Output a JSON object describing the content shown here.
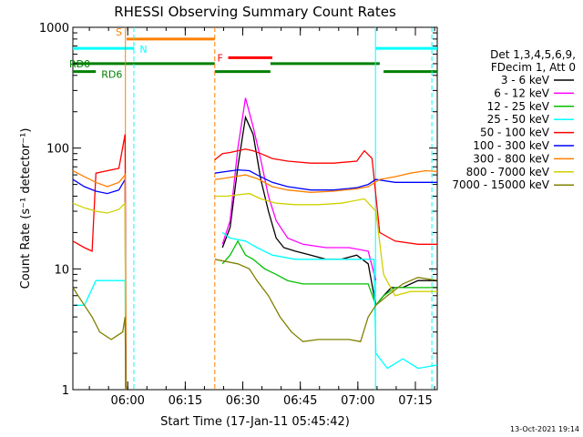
{
  "chart_data": {
    "type": "line",
    "title": "RHESSI Observing Summary Count Rates",
    "xlabel": "Start Time (17-Jan-11 05:45:42)",
    "ylabel": "Count Rate (s⁻¹ detector⁻¹)",
    "yscale": "log",
    "ylim": [
      1,
      1000
    ],
    "xlim_minutes": [
      0,
      95
    ],
    "x_ticks": [
      {
        "m": 14.3,
        "label": "06:00"
      },
      {
        "m": 29.3,
        "label": "06:15"
      },
      {
        "m": 44.3,
        "label": "06:30"
      },
      {
        "m": 59.3,
        "label": "06:45"
      },
      {
        "m": 74.3,
        "label": "07:00"
      },
      {
        "m": 89.3,
        "label": "07:15"
      }
    ],
    "y_ticks": [
      {
        "v": 1,
        "label": "1"
      },
      {
        "v": 10,
        "label": "10"
      },
      {
        "v": 100,
        "label": "100"
      },
      {
        "v": 1000,
        "label": "1000"
      }
    ],
    "legend_header": [
      "Det 1,3,4,5,6,9,",
      "FDecim 1, Att 0"
    ],
    "legend_position": "right",
    "footer_date": "13-Oct-2021 19:14",
    "flags": [
      {
        "label": "S",
        "color": "#ff8000",
        "y": 800,
        "start": 14.0,
        "end": 37.0
      },
      {
        "label": "N",
        "color": "#00ffff",
        "y": 670,
        "start": 0,
        "end": 16.0
      },
      {
        "label": "N",
        "color": "#00ffff",
        "y": 670,
        "start": 79.0,
        "end": 95.0
      },
      {
        "label": "F",
        "color": "#ff0000",
        "y": 560,
        "start": 40.5,
        "end": 52.0
      },
      {
        "label": "RD0",
        "color": "#008000",
        "y": 500,
        "start": 0,
        "end": 37.0
      },
      {
        "label": "RD0",
        "color": "#008000",
        "y": 500,
        "start": 51.5,
        "end": 80.0
      },
      {
        "label": "RD6",
        "color": "#008000",
        "y": 430,
        "start": 0,
        "end": 6.0
      },
      {
        "label": "RD6",
        "color": "#008000",
        "y": 430,
        "start": 37.0,
        "end": 51.5
      },
      {
        "label": "RD6",
        "color": "#008000",
        "y": 430,
        "start": 81.0,
        "end": 95.0
      }
    ],
    "vlines": [
      {
        "m": 13.7,
        "color": "#ff8000",
        "style": "solid"
      },
      {
        "m": 15.9,
        "color": "#00ffff",
        "style": "dashed"
      },
      {
        "m": 37.0,
        "color": "#ff8000",
        "style": "dashed"
      },
      {
        "m": 78.9,
        "color": "#00ffff",
        "style": "solid"
      },
      {
        "m": 93.6,
        "color": "#00ffff",
        "style": "dashed"
      }
    ],
    "series": [
      {
        "name": "3 - 6 keV",
        "color": "#000000",
        "segments": [
          [
            [
              39,
              15
            ],
            [
              41,
              22
            ],
            [
              43,
              70
            ],
            [
              45,
              180
            ],
            [
              47,
              130
            ],
            [
              49,
              55
            ],
            [
              51,
              30
            ],
            [
              53,
              18
            ],
            [
              55,
              15
            ],
            [
              58,
              14
            ],
            [
              62,
              13
            ],
            [
              66,
              12
            ],
            [
              70,
              12
            ],
            [
              74,
              13
            ],
            [
              77,
              11
            ],
            [
              79,
              5
            ],
            [
              81,
              6
            ],
            [
              83,
              7
            ],
            [
              86,
              7
            ],
            [
              90,
              8
            ],
            [
              95,
              8
            ]
          ]
        ]
      },
      {
        "name": "6 - 12 keV",
        "color": "#ff00ff",
        "segments": [
          [
            [
              39,
              16
            ],
            [
              41,
              25
            ],
            [
              43,
              100
            ],
            [
              45,
              260
            ],
            [
              47,
              150
            ],
            [
              49,
              80
            ],
            [
              51,
              40
            ],
            [
              53,
              25
            ],
            [
              56,
              18
            ],
            [
              60,
              16
            ],
            [
              66,
              15
            ],
            [
              72,
              15
            ],
            [
              77,
              14
            ],
            [
              79,
              8
            ]
          ]
        ]
      },
      {
        "name": "12 - 25 keV",
        "color": "#00c000",
        "segments": [
          [
            [
              39,
              11
            ],
            [
              41,
              13
            ],
            [
              43,
              17
            ],
            [
              45,
              13
            ],
            [
              47,
              12
            ],
            [
              50,
              10
            ],
            [
              53,
              9
            ],
            [
              56,
              8
            ],
            [
              60,
              7.5
            ],
            [
              66,
              7.5
            ],
            [
              72,
              7.5
            ],
            [
              77,
              7.5
            ],
            [
              79,
              5
            ],
            [
              81,
              6
            ],
            [
              84,
              7
            ],
            [
              88,
              7
            ],
            [
              95,
              7
            ]
          ]
        ]
      },
      {
        "name": "25 - 50 keV",
        "color": "#00ffff",
        "segments": [
          [
            [
              0,
              5
            ],
            [
              3,
              5
            ],
            [
              6,
              8
            ],
            [
              10,
              8
            ],
            [
              13,
              8
            ],
            [
              13.6,
              8
            ],
            [
              13.8,
              1
            ]
          ],
          [
            [
              39,
              20
            ],
            [
              41,
              18
            ],
            [
              45,
              17
            ],
            [
              48,
              15
            ],
            [
              52,
              13
            ],
            [
              58,
              12
            ],
            [
              64,
              12
            ],
            [
              70,
              12
            ],
            [
              76,
              12
            ],
            [
              78.5,
              12
            ],
            [
              79,
              2
            ],
            [
              82,
              1.5
            ],
            [
              86,
              1.8
            ],
            [
              90,
              1.5
            ],
            [
              95,
              1.6
            ]
          ]
        ]
      },
      {
        "name": "50 - 100 keV",
        "color": "#ff0000",
        "segments": [
          [
            [
              0,
              17
            ],
            [
              3,
              15
            ],
            [
              5,
              14
            ],
            [
              6,
              62
            ],
            [
              9,
              65
            ],
            [
              12,
              68
            ],
            [
              13.6,
              130
            ],
            [
              13.9,
              1
            ]
          ],
          [
            [
              37,
              80
            ],
            [
              39,
              90
            ],
            [
              41,
              92
            ],
            [
              43,
              95
            ],
            [
              45,
              98
            ],
            [
              47,
              95
            ],
            [
              49,
              90
            ],
            [
              52,
              82
            ],
            [
              56,
              78
            ],
            [
              62,
              75
            ],
            [
              68,
              75
            ],
            [
              74,
              78
            ],
            [
              76,
              95
            ],
            [
              78,
              82
            ],
            [
              80,
              20
            ],
            [
              84,
              17
            ],
            [
              90,
              16
            ],
            [
              95,
              16
            ]
          ]
        ]
      },
      {
        "name": "100 - 300 keV",
        "color": "#0000ff",
        "segments": [
          [
            [
              0,
              55
            ],
            [
              3,
              48
            ],
            [
              6,
              44
            ],
            [
              9,
              42
            ],
            [
              12,
              45
            ],
            [
              13.6,
              55
            ],
            [
              13.8,
              1
            ]
          ],
          [
            [
              37,
              62
            ],
            [
              40,
              64
            ],
            [
              43,
              66
            ],
            [
              46,
              65
            ],
            [
              48,
              60
            ],
            [
              52,
              52
            ],
            [
              56,
              48
            ],
            [
              62,
              45
            ],
            [
              68,
              45
            ],
            [
              74,
              47
            ],
            [
              77,
              50
            ],
            [
              79,
              55
            ],
            [
              84,
              52
            ],
            [
              90,
              52
            ],
            [
              95,
              52
            ]
          ]
        ]
      },
      {
        "name": "300 - 800 keV",
        "color": "#ff8000",
        "segments": [
          [
            [
              0,
              65
            ],
            [
              3,
              58
            ],
            [
              6,
              52
            ],
            [
              9,
              48
            ],
            [
              12,
              52
            ],
            [
              13.6,
              60
            ],
            [
              13.8,
              1
            ]
          ],
          [
            [
              37,
              55
            ],
            [
              39,
              56
            ],
            [
              42,
              58
            ],
            [
              45,
              60
            ],
            [
              48,
              56
            ],
            [
              52,
              48
            ],
            [
              56,
              45
            ],
            [
              62,
              43
            ],
            [
              68,
              44
            ],
            [
              74,
              46
            ],
            [
              77,
              48
            ],
            [
              80,
              55
            ],
            [
              84,
              58
            ],
            [
              88,
              62
            ],
            [
              92,
              65
            ],
            [
              95,
              64
            ]
          ]
        ]
      },
      {
        "name": "800 - 7000 keV",
        "color": "#d0d000",
        "segments": [
          [
            [
              0,
              35
            ],
            [
              3,
              32
            ],
            [
              6,
              30
            ],
            [
              9,
              29
            ],
            [
              12,
              31
            ],
            [
              13.6,
              35
            ],
            [
              13.8,
              1
            ]
          ],
          [
            [
              37,
              40
            ],
            [
              40,
              40
            ],
            [
              43,
              41
            ],
            [
              46,
              42
            ],
            [
              49,
              38
            ],
            [
              53,
              35
            ],
            [
              58,
              34
            ],
            [
              64,
              34
            ],
            [
              70,
              35
            ],
            [
              76,
              38
            ],
            [
              79,
              30
            ],
            [
              81,
              9
            ],
            [
              84,
              6
            ],
            [
              88,
              6.5
            ],
            [
              92,
              6.5
            ],
            [
              95,
              6.5
            ]
          ]
        ]
      },
      {
        "name": "7000 - 15000 keV",
        "color": "#808000",
        "segments": [
          [
            [
              0,
              7
            ],
            [
              3,
              5
            ],
            [
              5,
              4
            ],
            [
              7,
              3
            ],
            [
              10,
              2.6
            ],
            [
              13,
              3
            ],
            [
              13.6,
              4
            ],
            [
              13.8,
              1
            ]
          ],
          [
            [
              37,
              12
            ],
            [
              40,
              11.5
            ],
            [
              43,
              11
            ],
            [
              46,
              10
            ],
            [
              48,
              8
            ],
            [
              51,
              6
            ],
            [
              54,
              4
            ],
            [
              57,
              3
            ],
            [
              60,
              2.5
            ],
            [
              64,
              2.6
            ],
            [
              68,
              2.6
            ],
            [
              72,
              2.6
            ],
            [
              75,
              2.5
            ],
            [
              77,
              4
            ],
            [
              79,
              5
            ],
            [
              82,
              6
            ],
            [
              86,
              7.5
            ],
            [
              90,
              8.5
            ],
            [
              95,
              8
            ]
          ]
        ]
      }
    ]
  }
}
